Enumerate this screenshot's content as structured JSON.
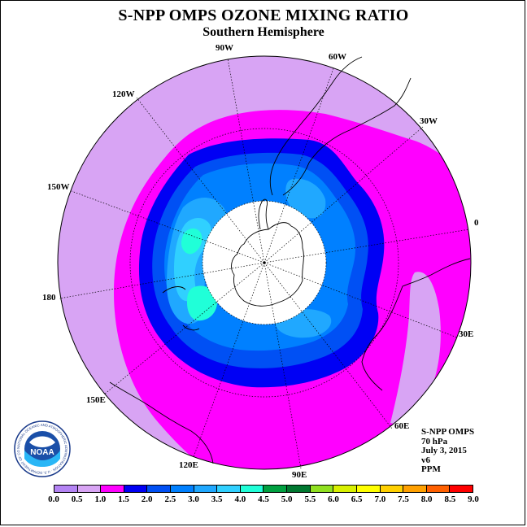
{
  "title": "S-NPP OMPS OZONE MIXING RATIO",
  "subtitle": "Southern Hemisphere",
  "longitude_labels": [
    "90W",
    "60W",
    "30W",
    "0",
    "30E",
    "60E",
    "90E",
    "120E",
    "150E",
    "180",
    "150W",
    "120W"
  ],
  "info": {
    "line1": "S-NPP OMPS",
    "line2": "70 hPa",
    "line3": "July 3, 2015",
    "line4": "v6",
    "line5": "PPM"
  },
  "colorbar": {
    "ticks": [
      "0.0",
      "0.5",
      "1.0",
      "1.5",
      "2.0",
      "2.5",
      "3.0",
      "3.5",
      "4.0",
      "4.5",
      "5.0",
      "5.5",
      "6.0",
      "6.5",
      "7.0",
      "7.5",
      "8.0",
      "8.5",
      "9.0"
    ],
    "colors": [
      "#b484f4",
      "#d8a4f4",
      "#ff00ff",
      "#0000f4",
      "#0050f4",
      "#0080ff",
      "#20a8ff",
      "#30d0ff",
      "#20ffd8",
      "#00a040",
      "#007830",
      "#90e020",
      "#d8f000",
      "#ffff00",
      "#ffd000",
      "#ffa000",
      "#ff6000",
      "#ff0000",
      "#8b5a3a"
    ]
  },
  "logo": {
    "text": "NOAA",
    "ring_text": "NATIONAL OCEANIC AND ATMOSPHERIC ADMINISTRATION · U.S. DEPARTMENT OF COMMERCE"
  },
  "map_colors": {
    "level_0_5": "#d8a4f4",
    "level_1_0": "#ff00ff",
    "level_1_5": "#0000f4",
    "level_2_0": "#0050f4",
    "level_2_5": "#0080ff",
    "level_3_0": "#20a8ff",
    "level_3_5": "#30d0ff",
    "level_4_0": "#20ffd8",
    "no_data": "#ffffff"
  }
}
